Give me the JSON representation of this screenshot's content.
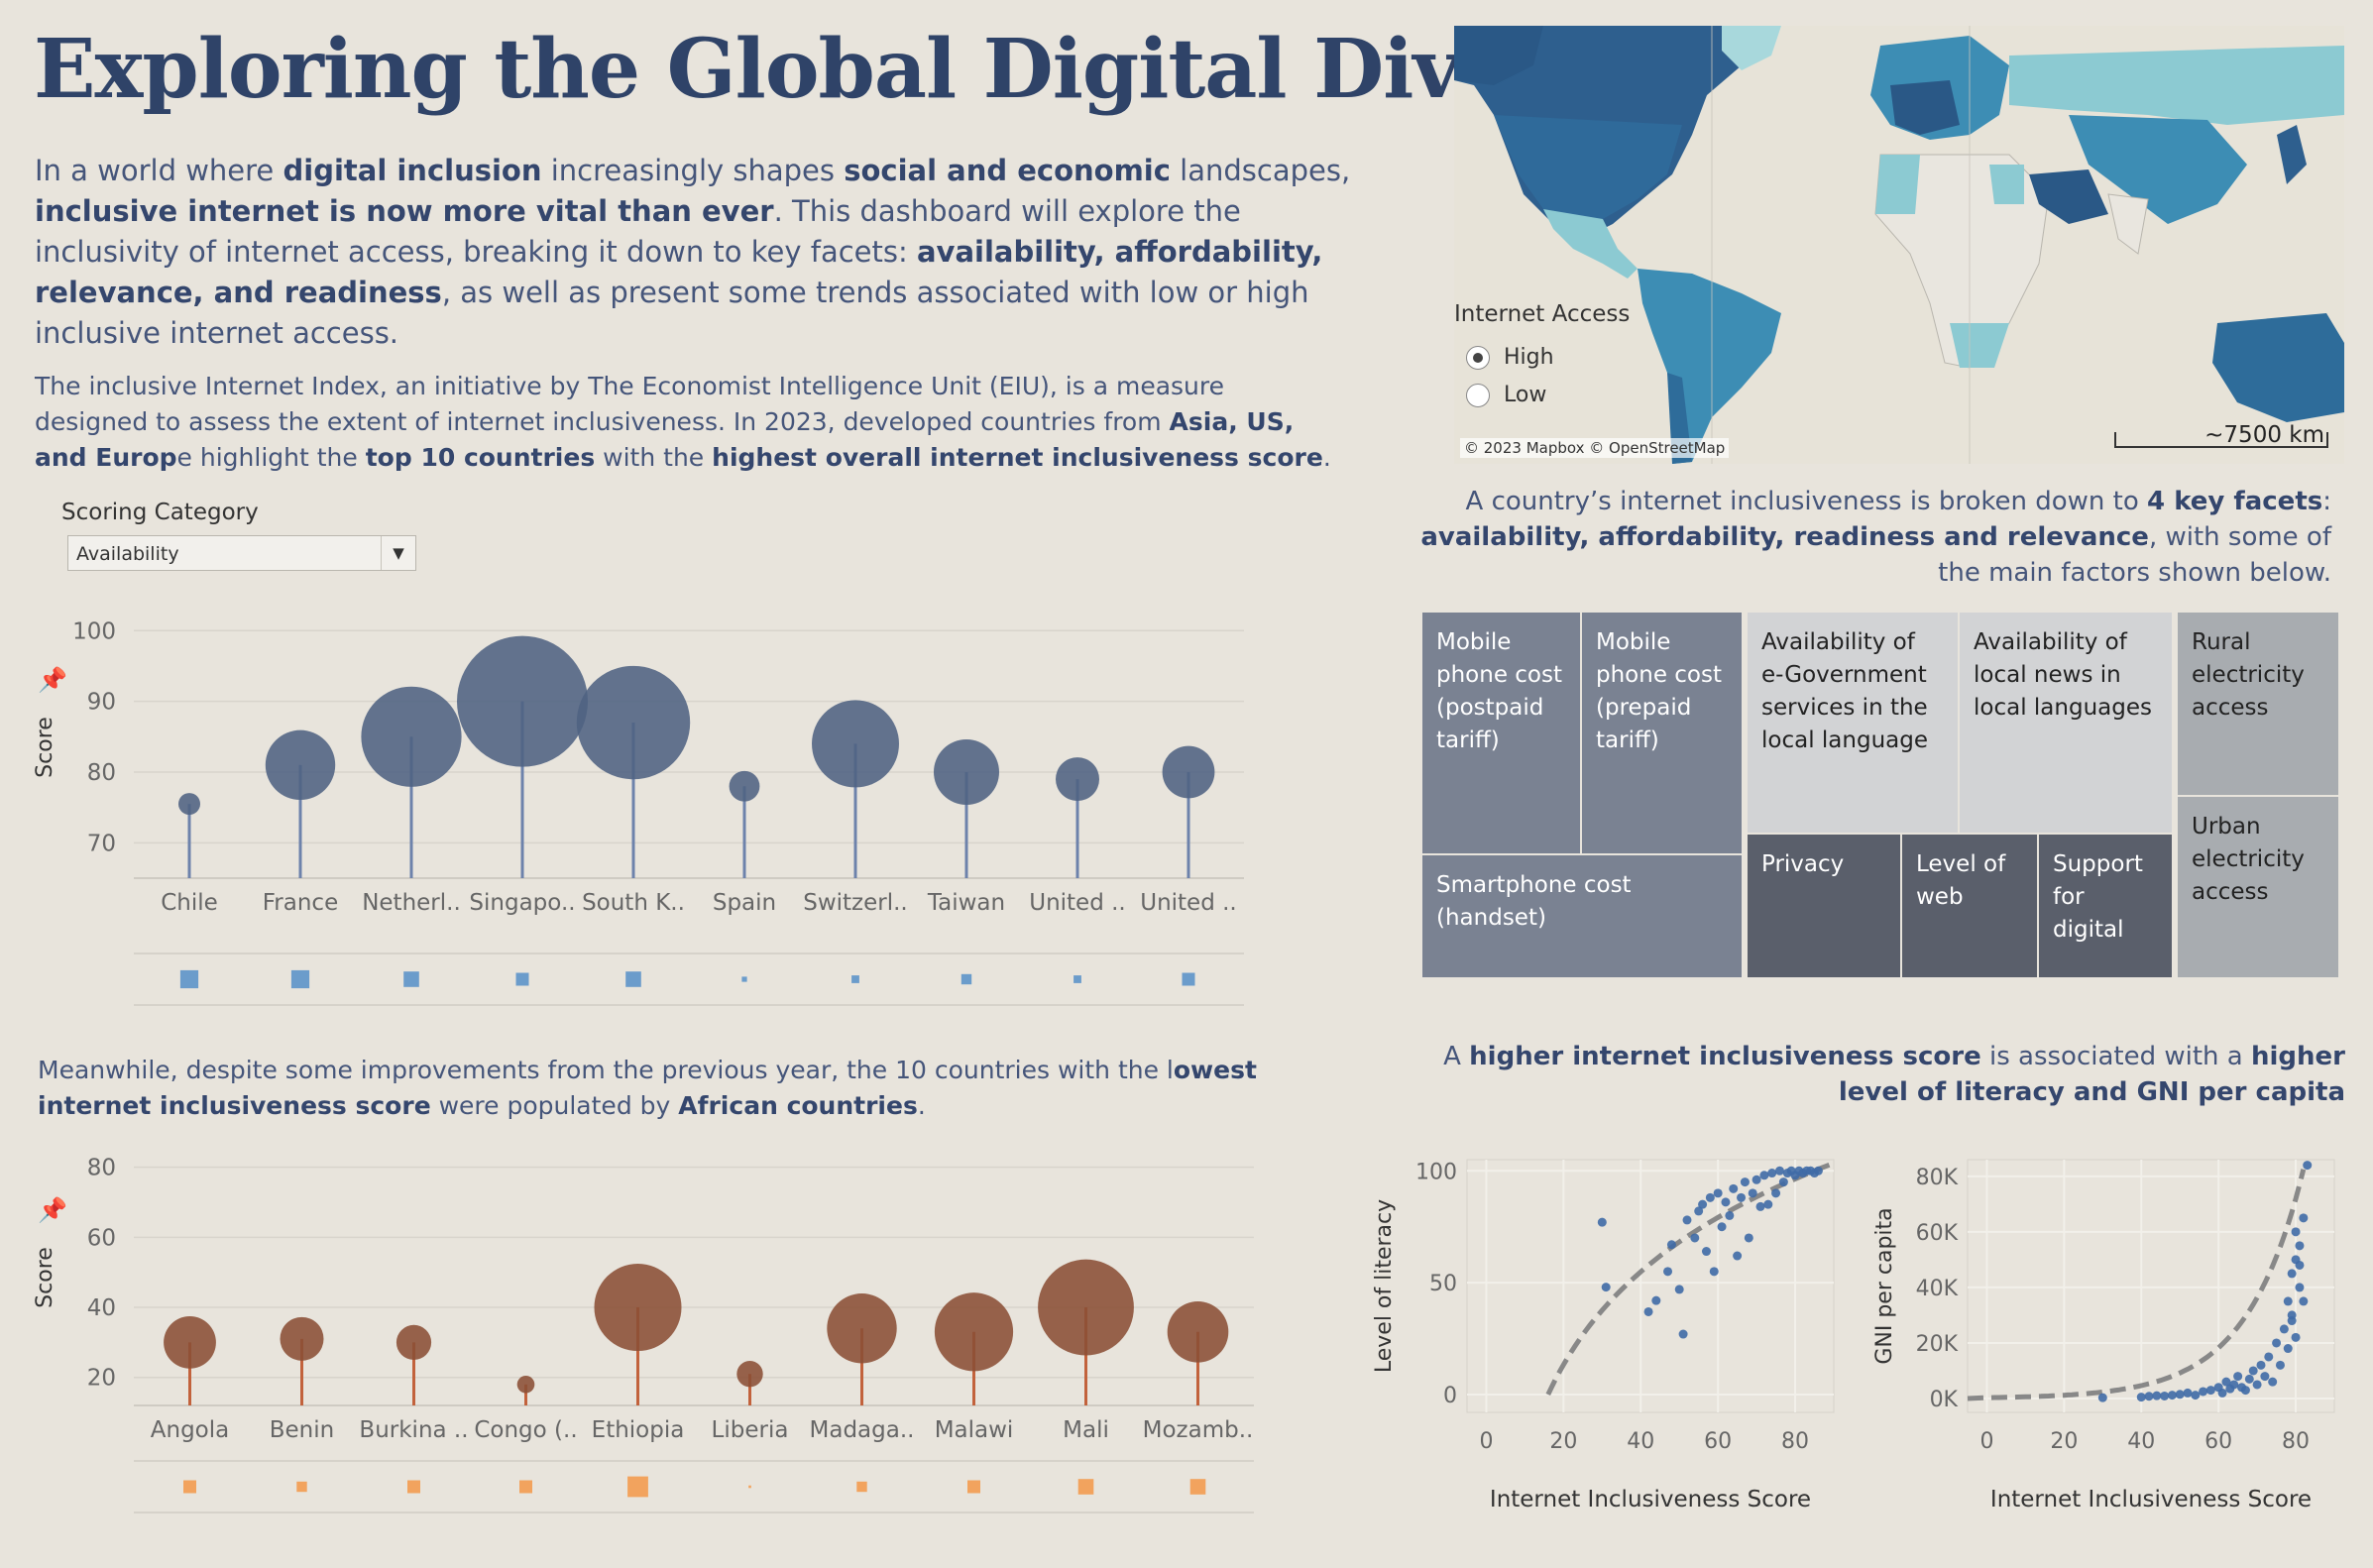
{
  "header": {
    "title": "Exploring the Global Digital Divide",
    "intro": {
      "t1": "In a world where ",
      "b1": "digital inclusion",
      "t2": " increasingly shapes ",
      "b2": "social and economic",
      "t3": " landscapes, ",
      "b3": "inclusive internet is now more vital than ever",
      "t4": ". This dashboard will explore the inclusivity of internet access, breaking it down to key facets: ",
      "b4": "availability, affordability, relevance, and readiness",
      "t5": ", as well as present some trends associated with low or high inclusive internet access."
    },
    "para2": {
      "t1": "The inclusive Internet Index, an initiative by The Economist Intelligence Unit (EIU), is a measure designed to assess the extent of internet inclusiveness. In 2023, developed countries from ",
      "b1": "Asia, US, and Europ",
      "t2": "e highlight the ",
      "b2": "top 10 countries",
      "t3": " with the ",
      "b3": "highest overall internet inclusiveness score",
      "t4": "."
    }
  },
  "filter": {
    "label": "Scoring Category",
    "selected": "Availability"
  },
  "para3": {
    "t1": "Meanwhile, despite some improvements from the previous year, the 10 countries with the l",
    "b1": "owest internet inclusiveness score",
    "t2": " were populated by ",
    "b2": "African countries",
    "t3": "."
  },
  "map": {
    "legend_title": "Internet Access",
    "options": [
      "High",
      "Low"
    ],
    "selected": "High",
    "attribution": "© 2023 Mapbox © OpenStreetMap",
    "scale": "~7500 km",
    "colors": {
      "dark": "#2e5f8e",
      "mid": "#3d8db4",
      "light": "#8ccad2",
      "none": "#e9e6df"
    }
  },
  "facets": {
    "t1": "A country’s internet inclusiveness is broken down to ",
    "b1": "4 key facets",
    "t2": ": ",
    "b2": "availability, affordability, readiness and relevance",
    "t3": ", with some of the main factors shown below.",
    "tiles": [
      "Mobile phone cost (postpaid tariff)",
      "Mobile phone cost (prepaid tariff)",
      "Smartphone cost (handset)",
      "Availability of e-Government services in the local language",
      "Availability of local news in local languages",
      "Privacy",
      "Level of web",
      "Support for digital",
      "Rural electricity access",
      "Urban electricity access"
    ]
  },
  "correlation": {
    "t1": "A ",
    "b1": "higher internet inclusiveness score",
    "t2": " is associated with a ",
    "b2": "higher level of literacy and GNI per capita"
  },
  "chart_data": [
    {
      "type": "lollipop",
      "ylabel": "Score",
      "ylim": [
        65,
        102
      ],
      "yticks": [
        70,
        80,
        90,
        100
      ],
      "categories": [
        "Chile",
        "France",
        "Netherl..",
        "Singapo..",
        "South K..",
        "Spain",
        "Switzerl..",
        "Taiwan",
        "United ..",
        "United .."
      ],
      "values": [
        75.5,
        81,
        85,
        90,
        87,
        78,
        84,
        80,
        79,
        80
      ],
      "bubble_size": [
        5,
        16,
        23,
        30,
        26,
        7,
        20,
        15,
        10,
        12
      ],
      "square_size": [
        7,
        7,
        6,
        5,
        6,
        2,
        3,
        4,
        3,
        5
      ],
      "color": "#4e6282",
      "stem_color": "#6d82ab",
      "square_color": "#6b9ccb"
    },
    {
      "type": "lollipop",
      "ylabel": "Score",
      "ylim": [
        12,
        85
      ],
      "yticks": [
        20,
        40,
        60,
        80
      ],
      "categories": [
        "Angola",
        "Benin",
        "Burkina ..",
        "Congo (..",
        "Ethiopia",
        "Liberia",
        "Madaga..",
        "Malawi",
        "Mali",
        "Mozamb.."
      ],
      "values": [
        30,
        31,
        30,
        18,
        40,
        21,
        34,
        33,
        40,
        33
      ],
      "bubble_size": [
        12,
        10,
        8,
        4,
        20,
        6,
        16,
        18,
        22,
        14
      ],
      "square_size": [
        5,
        4,
        5,
        5,
        8,
        1,
        4,
        5,
        6,
        6
      ],
      "color": "#8a4e36",
      "stem_color": "#c2623c",
      "square_color": "#f2a35e"
    },
    {
      "type": "scatter",
      "xlabel": "Internet Inclusiveness Score",
      "ylabel": "Level of literacy",
      "xlim": [
        -5,
        90
      ],
      "ylim": [
        -8,
        105
      ],
      "xticks": [
        0,
        20,
        40,
        60,
        80
      ],
      "yticks": [
        0,
        50,
        100
      ],
      "trend": "log",
      "points": [
        [
          30,
          77
        ],
        [
          31,
          48
        ],
        [
          42,
          37
        ],
        [
          44,
          42
        ],
        [
          47,
          55
        ],
        [
          48,
          67
        ],
        [
          50,
          47
        ],
        [
          51,
          27
        ],
        [
          52,
          78
        ],
        [
          54,
          70
        ],
        [
          55,
          82
        ],
        [
          56,
          85
        ],
        [
          57,
          64
        ],
        [
          58,
          88
        ],
        [
          59,
          55
        ],
        [
          60,
          90
        ],
        [
          61,
          75
        ],
        [
          62,
          86
        ],
        [
          63,
          80
        ],
        [
          64,
          92
        ],
        [
          65,
          62
        ],
        [
          66,
          88
        ],
        [
          67,
          95
        ],
        [
          68,
          70
        ],
        [
          69,
          90
        ],
        [
          70,
          96
        ],
        [
          71,
          84
        ],
        [
          72,
          98
        ],
        [
          73,
          85
        ],
        [
          74,
          99
        ],
        [
          75,
          90
        ],
        [
          76,
          100
        ],
        [
          77,
          95
        ],
        [
          78,
          99
        ],
        [
          79,
          100
        ],
        [
          80,
          98
        ],
        [
          81,
          100
        ],
        [
          82,
          99
        ],
        [
          83,
          100
        ],
        [
          84,
          100
        ],
        [
          85,
          99
        ],
        [
          86,
          100
        ]
      ]
    },
    {
      "type": "scatter",
      "xlabel": "Internet Inclusiveness Score",
      "ylabel": "GNI per capita",
      "xlim": [
        -5,
        90
      ],
      "ylim": [
        -5000,
        86000
      ],
      "xticks": [
        0,
        20,
        40,
        60,
        80
      ],
      "yticks": [
        0,
        20000,
        40000,
        60000,
        80000
      ],
      "ytick_labels": [
        "0K",
        "20K",
        "40K",
        "60K",
        "80K"
      ],
      "trend": "exp",
      "points": [
        [
          30,
          300
        ],
        [
          40,
          500
        ],
        [
          42,
          800
        ],
        [
          44,
          1000
        ],
        [
          46,
          900
        ],
        [
          48,
          1200
        ],
        [
          50,
          1500
        ],
        [
          52,
          2000
        ],
        [
          54,
          1200
        ],
        [
          56,
          2500
        ],
        [
          58,
          3000
        ],
        [
          60,
          4000
        ],
        [
          61,
          2000
        ],
        [
          62,
          6000
        ],
        [
          63,
          3500
        ],
        [
          64,
          5000
        ],
        [
          65,
          8000
        ],
        [
          66,
          4000
        ],
        [
          67,
          3000
        ],
        [
          68,
          7000
        ],
        [
          69,
          10000
        ],
        [
          70,
          5000
        ],
        [
          71,
          12000
        ],
        [
          72,
          8000
        ],
        [
          73,
          15000
        ],
        [
          74,
          6000
        ],
        [
          75,
          20000
        ],
        [
          76,
          12000
        ],
        [
          77,
          25000
        ],
        [
          78,
          18000
        ],
        [
          78,
          35000
        ],
        [
          79,
          45000
        ],
        [
          79,
          30000
        ],
        [
          80,
          50000
        ],
        [
          80,
          60000
        ],
        [
          81,
          40000
        ],
        [
          81,
          55000
        ],
        [
          82,
          65000
        ],
        [
          82,
          35000
        ],
        [
          83,
          84000
        ],
        [
          80,
          22000
        ],
        [
          79,
          28000
        ],
        [
          81,
          48000
        ]
      ]
    }
  ]
}
